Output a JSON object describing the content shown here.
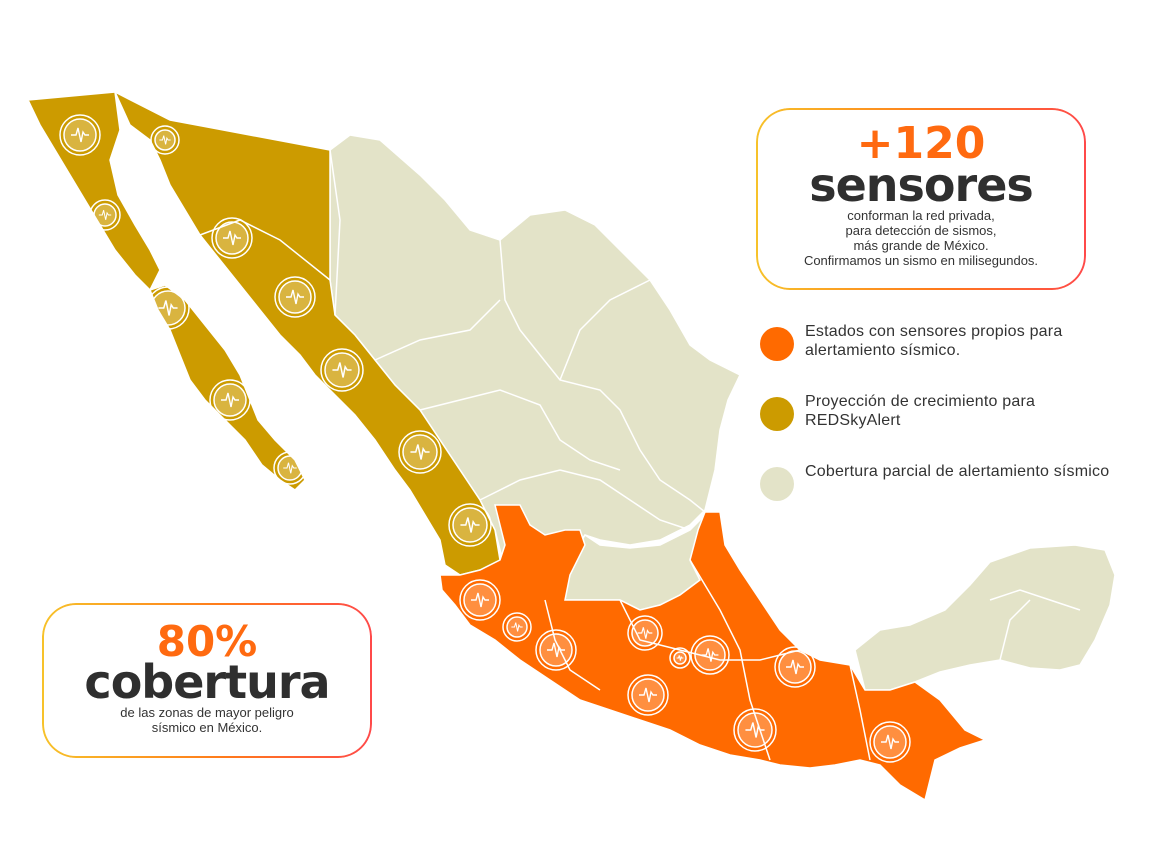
{
  "colors": {
    "orange": "#ff6a00",
    "gold": "#cc9b00",
    "beige": "#e3e3c8",
    "border": "#ffffff",
    "sensor_ring": "#ffffff"
  },
  "card_sensores": {
    "number": "+120",
    "word": "sensores",
    "lines": [
      "conforman la red privada,",
      "para detección de sismos,",
      "más grande de México.",
      "Confirmamos un sismo en milisegundos."
    ]
  },
  "card_cobertura": {
    "number": "80%",
    "word": "cobertura",
    "lines": [
      "de las zonas de mayor peligro",
      "sísmico en México."
    ]
  },
  "legend": [
    {
      "label": "Estados con sensores propios para alertamiento sísmico.",
      "color": "#ff6a00"
    },
    {
      "label": "Proyección de crecimiento para REDSkyAlert",
      "color": "#cc9b00"
    },
    {
      "label": "Cobertura parcial de alertamiento sísmico",
      "color": "#e3e3c8"
    }
  ],
  "sensor_icon": "seismic-wave-icon"
}
